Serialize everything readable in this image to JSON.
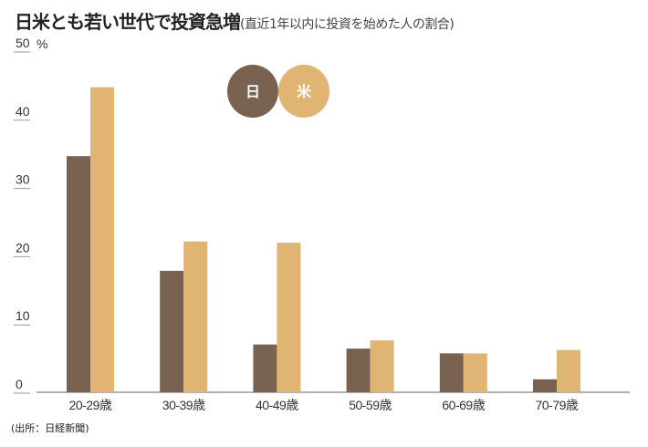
{
  "colors": {
    "japan": "#7a6250",
    "us": "#e0b574",
    "axis": "#999999"
  },
  "chart_data": {
    "type": "bar",
    "title": "日米とも若い世代で投資急増",
    "subtitle": "(直近1年以内に投資を始めた人の割合)",
    "ylabel": "%",
    "ylim": [
      0,
      50
    ],
    "yticks": [
      "0",
      "10",
      "20",
      "30",
      "40",
      "50"
    ],
    "categories": [
      "20-29歳",
      "30-39歳",
      "40-49歳",
      "50-59歳",
      "60-69歳",
      "70-79歳"
    ],
    "series": [
      {
        "name": "日",
        "values": [
          34.6,
          17.8,
          7.0,
          6.4,
          5.7,
          1.9
        ]
      },
      {
        "name": "米",
        "values": [
          44.7,
          22.1,
          21.9,
          7.6,
          5.7,
          6.2
        ]
      }
    ],
    "legend": "top-center",
    "source": "(出所：日経新聞)"
  }
}
